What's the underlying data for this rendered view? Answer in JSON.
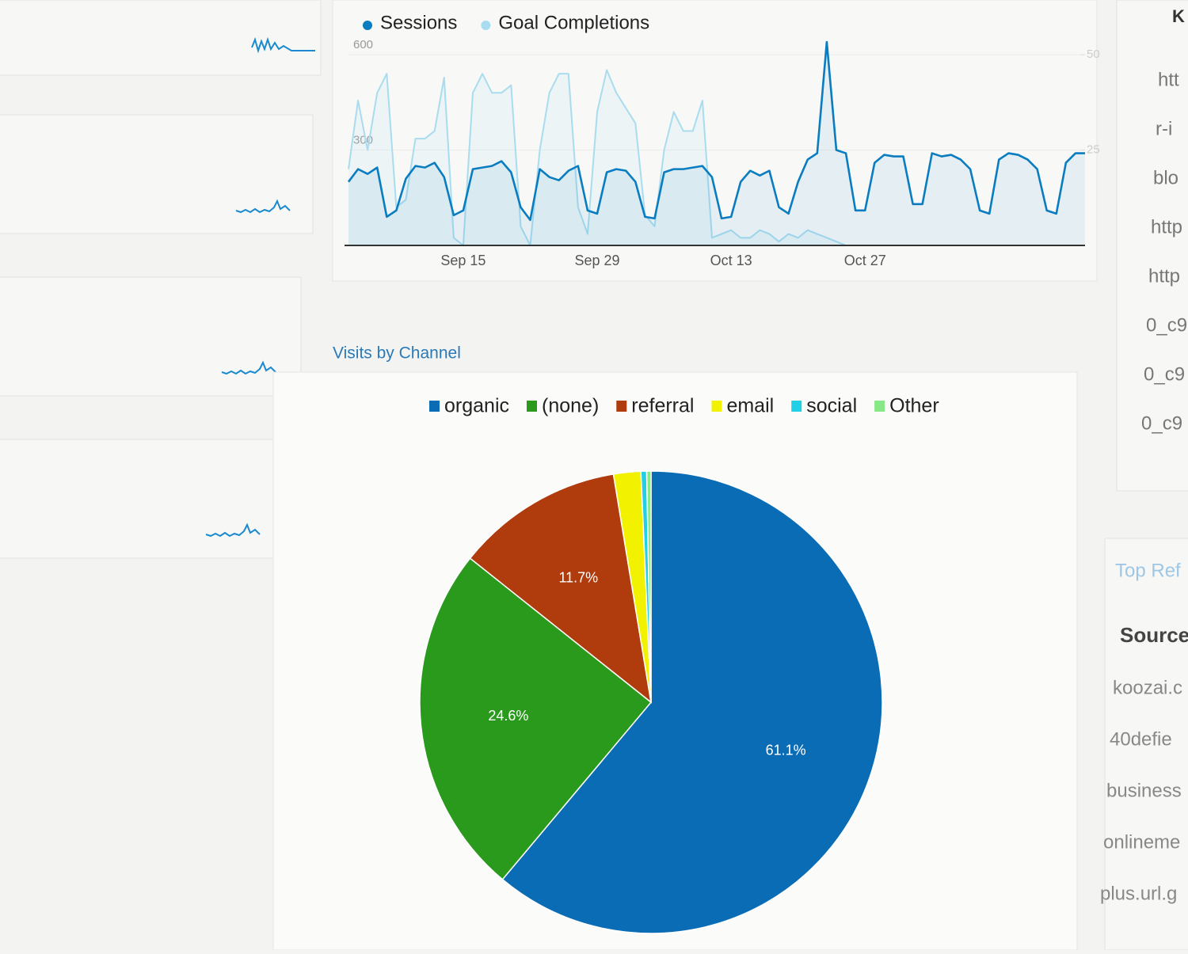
{
  "chart_data": [
    {
      "type": "line",
      "categories": [
        null,
        null,
        null,
        null,
        null,
        null,
        null,
        null,
        null,
        null,
        null,
        null,
        "Sep 15",
        null,
        null,
        null,
        null,
        null,
        null,
        null,
        null,
        null,
        null,
        null,
        null,
        null,
        "Sep 29",
        null,
        null,
        null,
        null,
        null,
        null,
        null,
        null,
        null,
        null,
        null,
        null,
        null,
        "Oct 13",
        null,
        null,
        null,
        null,
        null,
        null,
        null,
        null,
        null,
        null,
        null,
        null,
        null,
        "Oct 27",
        null,
        null,
        null,
        null,
        null,
        null,
        null,
        null,
        null,
        null,
        null,
        null,
        null,
        null,
        null,
        null,
        null,
        null,
        null,
        null,
        null,
        null,
        null
      ],
      "series": [
        {
          "name": "Sessions",
          "color": "#0a7cc0",
          "values": [
            200,
            240,
            225,
            245,
            90,
            110,
            210,
            250,
            245,
            260,
            215,
            95,
            110,
            240,
            245,
            250,
            265,
            230,
            120,
            80,
            240,
            215,
            205,
            235,
            250,
            110,
            100,
            230,
            240,
            235,
            200,
            90,
            85,
            230,
            240,
            240,
            245,
            250,
            215,
            85,
            90,
            200,
            235,
            220,
            235,
            120,
            100,
            200,
            270,
            290,
            640,
            300,
            290,
            110,
            110,
            260,
            285,
            280,
            280,
            130,
            130,
            290,
            280,
            285,
            270,
            240,
            110,
            100,
            270,
            290,
            285,
            270,
            240,
            110,
            100,
            260,
            290,
            290
          ]
        },
        {
          "name": "Goal Completions",
          "color": "#a9dcef",
          "axis": "y2",
          "values": [
            20,
            38,
            25,
            40,
            45,
            10,
            12,
            28,
            28,
            30,
            44,
            2,
            0,
            40,
            45,
            40,
            40,
            42,
            5,
            0,
            25,
            40,
            45,
            45,
            10,
            3,
            35,
            46,
            40,
            36,
            32,
            8,
            5,
            25,
            35,
            30,
            30,
            38,
            2,
            3,
            4,
            2,
            2,
            4,
            3,
            1,
            3,
            2,
            4,
            3,
            2,
            1,
            0,
            0,
            0,
            0,
            0,
            0,
            0,
            0,
            0,
            0,
            0,
            0,
            0,
            0,
            0,
            0,
            0,
            0,
            0,
            0,
            0,
            0,
            0,
            0,
            0,
            0
          ]
        }
      ],
      "ylim": [
        0,
        660
      ],
      "yticks": [
        300,
        600
      ],
      "y2lim": [
        0,
        55
      ],
      "y2ticks": [
        25,
        50
      ]
    },
    {
      "type": "pie",
      "title": "Visits by Channel",
      "categories": [
        "organic",
        "(none)",
        "referral",
        "email",
        "social",
        "Other"
      ],
      "values": [
        61.1,
        24.6,
        11.7,
        1.9,
        0.4,
        0.3
      ],
      "value_labels": [
        "61.1%",
        "24.6%",
        "11.7%",
        null,
        null,
        null
      ],
      "colors": [
        "#0a6cb5",
        "#2a9a1c",
        "#b03c0e",
        "#f2f200",
        "#22d0e6",
        "#86e886"
      ]
    }
  ],
  "sidebar": {
    "header": "K",
    "items": [
      "htt",
      "r-i",
      "blo",
      "http",
      "http",
      "0_c9",
      "0_c9",
      "0_c9"
    ],
    "panel_title": "Top Ref",
    "column": "Source",
    "sources": [
      "koozai.c",
      "40defie",
      "business",
      "onlineme",
      "plus.url.g"
    ]
  }
}
